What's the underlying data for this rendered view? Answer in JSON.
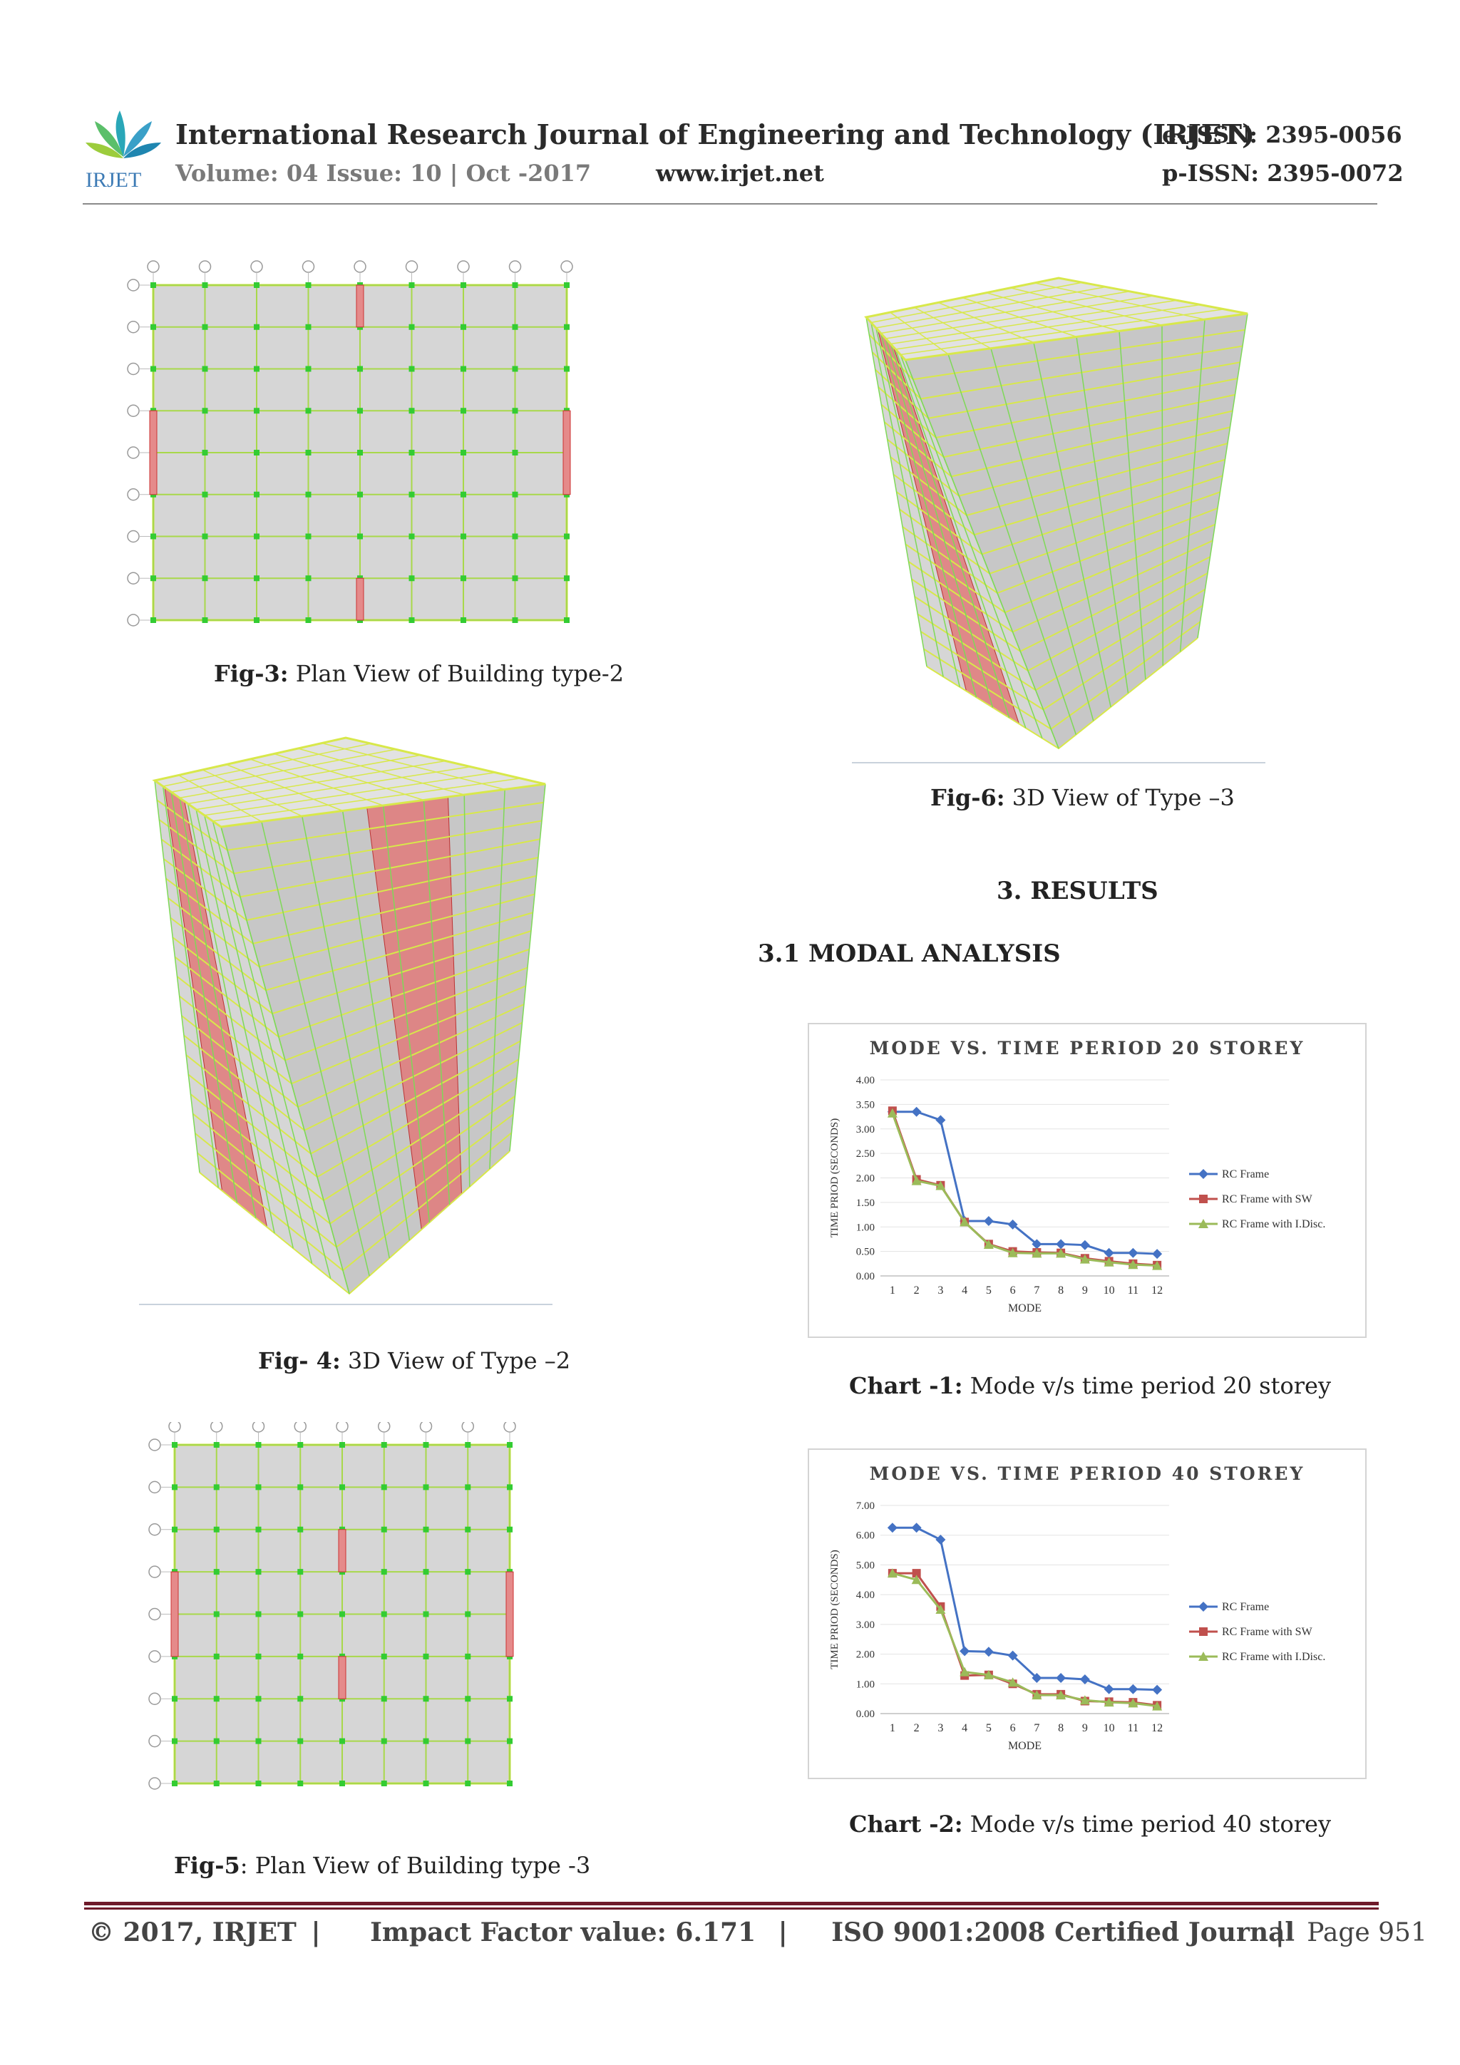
{
  "header": {
    "logo_text": "IRJET",
    "journal_title": "International Research Journal of Engineering and Technology (IRJET)",
    "eissn": "e-ISSN: 2395-0056",
    "volume": "Volume: 04 Issue: 10 | Oct -2017",
    "website": "www.irjet.net",
    "pissn": "p-ISSN: 2395-0072"
  },
  "figures": {
    "fig3": {
      "label": "Fig-3:",
      "text": " Plan View of Building type-2"
    },
    "fig4": {
      "label": "Fig- 4:",
      "text": " 3D View of Type –2"
    },
    "fig5": {
      "label": "Fig-5",
      "text": ": Plan View of Building type -3"
    },
    "fig6": {
      "label": "Fig-6:",
      "text": " 3D View of Type –3"
    }
  },
  "sections": {
    "results": "3. RESULTS",
    "modal": "3.1 MODAL ANALYSIS"
  },
  "captions": {
    "chart1": {
      "label": "Chart -1:",
      "text": " Mode v/s time period 20 storey"
    },
    "chart2": {
      "label": "Chart -2:",
      "text": " Mode v/s time period 40 storey"
    }
  },
  "chart_data": [
    {
      "type": "line",
      "title": "MODE VS. TIME PERIOD 20 STOREY",
      "xlabel": "MODE",
      "ylabel": "TIME PRIOD (SECONDS)",
      "categories": [
        "1",
        "2",
        "3",
        "4",
        "5",
        "6",
        "7",
        "8",
        "9",
        "10",
        "11",
        "12"
      ],
      "yticks": [
        "0.00",
        "0.50",
        "1.00",
        "1.50",
        "2.00",
        "2.50",
        "3.00",
        "3.50",
        "4.00"
      ],
      "ylim": [
        0,
        4
      ],
      "legend": "right",
      "series": [
        {
          "name": "RC Frame",
          "color": "#4472c4",
          "marker": "diamond",
          "values": [
            3.35,
            3.35,
            3.18,
            1.12,
            1.12,
            1.05,
            0.65,
            0.65,
            0.63,
            0.47,
            0.47,
            0.45
          ]
        },
        {
          "name": "RC Frame with SW",
          "color": "#c0504d",
          "marker": "square",
          "values": [
            3.37,
            1.97,
            1.85,
            1.1,
            0.65,
            0.5,
            0.48,
            0.47,
            0.36,
            0.3,
            0.25,
            0.22
          ]
        },
        {
          "name": "RC Frame with I.Disc.",
          "color": "#9bbb59",
          "marker": "triangle",
          "values": [
            3.32,
            1.94,
            1.84,
            1.1,
            0.64,
            0.47,
            0.46,
            0.46,
            0.34,
            0.28,
            0.23,
            0.21
          ]
        }
      ]
    },
    {
      "type": "line",
      "title": "MODE VS. TIME PERIOD 40 STOREY",
      "xlabel": "MODE",
      "ylabel": "TIME PRIOD (SECONDS)",
      "categories": [
        "1",
        "2",
        "3",
        "4",
        "5",
        "6",
        "7",
        "8",
        "9",
        "10",
        "11",
        "12"
      ],
      "yticks": [
        "0.00",
        "1.00",
        "2.00",
        "3.00",
        "4.00",
        "5.00",
        "6.00",
        "7.00"
      ],
      "ylim": [
        0,
        7
      ],
      "legend": "right",
      "series": [
        {
          "name": "RC Frame",
          "color": "#4472c4",
          "marker": "diamond",
          "values": [
            6.25,
            6.25,
            5.85,
            2.1,
            2.08,
            1.95,
            1.2,
            1.2,
            1.15,
            0.82,
            0.82,
            0.8
          ]
        },
        {
          "name": "RC Frame with SW",
          "color": "#c0504d",
          "marker": "square",
          "values": [
            4.72,
            4.72,
            3.6,
            1.28,
            1.3,
            1.0,
            0.65,
            0.65,
            0.42,
            0.4,
            0.38,
            0.28
          ]
        },
        {
          "name": "RC Frame with I.Disc.",
          "color": "#9bbb59",
          "marker": "triangle",
          "values": [
            4.72,
            4.5,
            3.5,
            1.4,
            1.3,
            1.05,
            0.62,
            0.62,
            0.45,
            0.38,
            0.35,
            0.25
          ]
        }
      ]
    }
  ],
  "footer": {
    "copyright": "© 2017, IRJET",
    "sep": "|",
    "impact": "Impact Factor value: 6.171",
    "iso": "ISO 9001:2008 Certified Journal",
    "page": "Page 951"
  }
}
